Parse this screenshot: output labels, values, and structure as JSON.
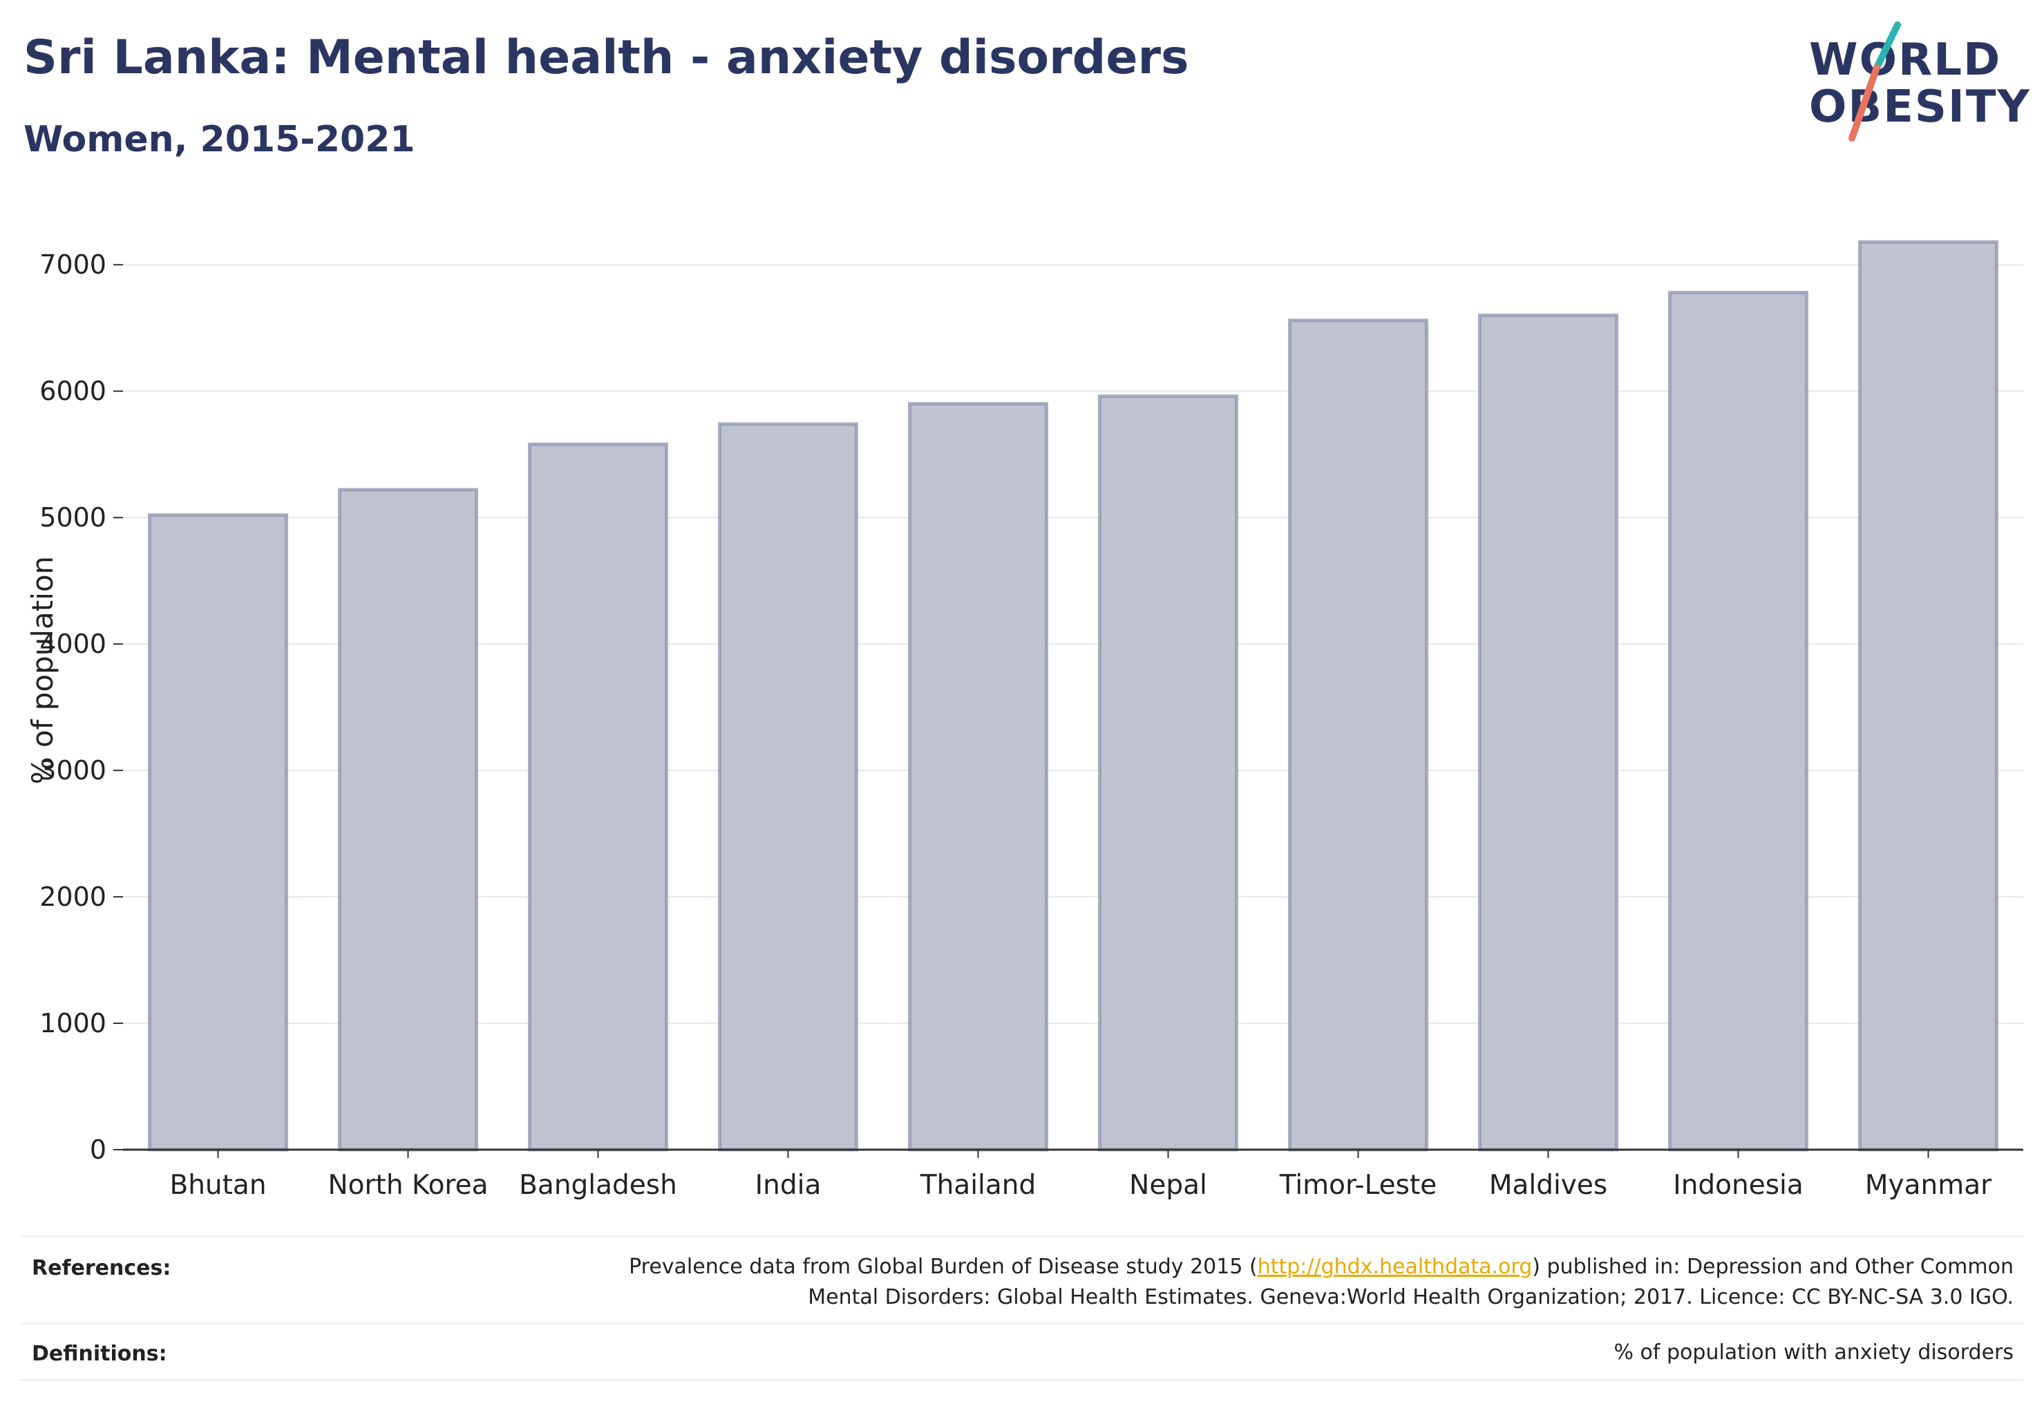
{
  "header": {
    "title": "Sri Lanka: Mental health - anxiety disorders",
    "subtitle": "Women, 2015-2021"
  },
  "logo": {
    "line1": "WORLD",
    "line2": "OBESITY",
    "accent_teal": "#2bb3b1",
    "accent_coral": "#e8735f"
  },
  "chart_data": {
    "type": "bar",
    "title": "Sri Lanka: Mental health - anxiety disorders",
    "subtitle": "Women, 2015-2021",
    "xlabel": "",
    "ylabel": "% of population",
    "categories": [
      "Bhutan",
      "North Korea",
      "Bangladesh",
      "India",
      "Thailand",
      "Nepal",
      "Timor-Leste",
      "Maldives",
      "Indonesia",
      "Myanmar"
    ],
    "values": [
      5020,
      5220,
      5580,
      5740,
      5900,
      5960,
      6560,
      6600,
      6780,
      7180
    ],
    "ylim": [
      0,
      7400
    ],
    "yticks": [
      0,
      1000,
      2000,
      3000,
      4000,
      5000,
      6000,
      7000
    ],
    "grid": true,
    "legend": "none",
    "bar_fill": "#bfc3d0",
    "bar_stroke": "#8d94ae"
  },
  "footer": {
    "references_label": "References:",
    "references_pre": "Prevalence data from Global Burden of Disease study 2015 (",
    "references_link": "http://ghdx.healthdata.org",
    "references_post": ") published in: Depression and Other Common",
    "references_line2": "Mental Disorders: Global Health Estimates. Geneva:World Health Organization; 2017. Licence: CC BY-NC-SA 3.0 IGO.",
    "definitions_label": "Definitions:",
    "definitions_text": "% of population with anxiety disorders"
  }
}
